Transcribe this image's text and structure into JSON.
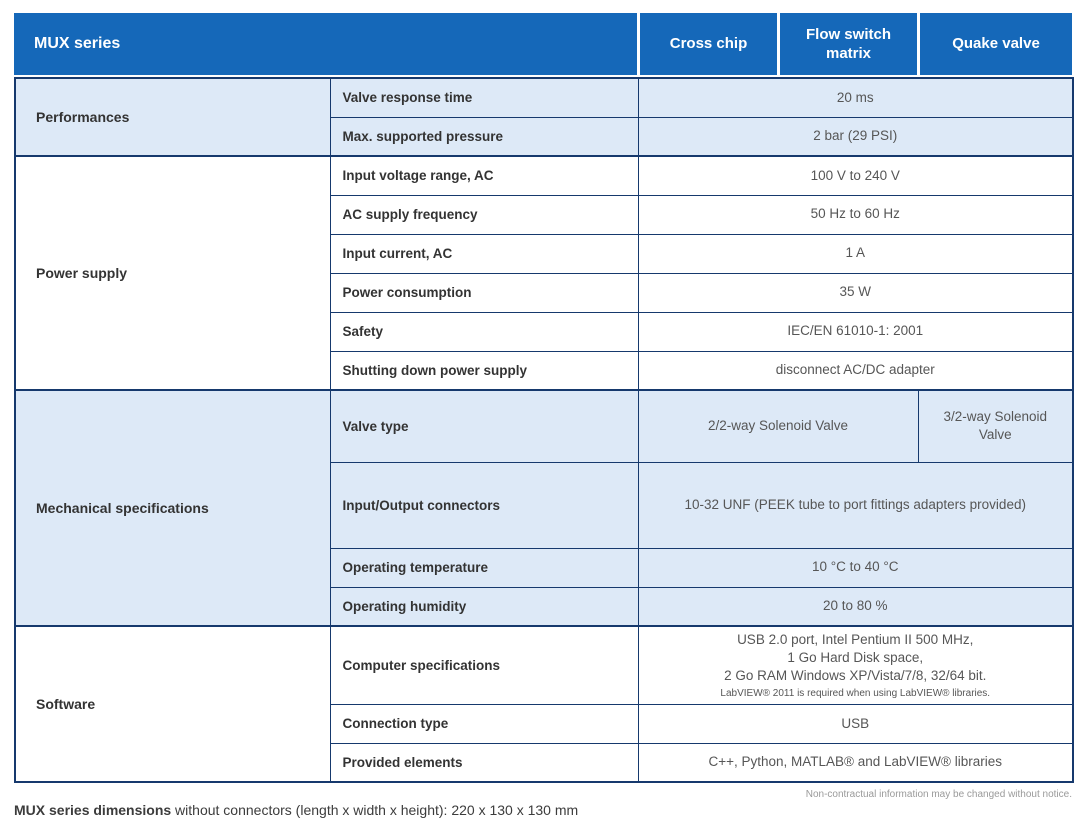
{
  "header": {
    "title": "MUX series",
    "columns": [
      "Cross chip",
      "Flow switch matrix",
      "Quake valve"
    ]
  },
  "sections": [
    {
      "name": "Performances",
      "rows": [
        {
          "label": "Valve response time",
          "value": "20 ms"
        },
        {
          "label": "Max. supported pressure",
          "value": "2 bar (29 PSI)"
        }
      ]
    },
    {
      "name": "Power supply",
      "rows": [
        {
          "label": "Input voltage range, AC",
          "value": "100 V to 240 V"
        },
        {
          "label": "AC supply frequency",
          "value": "50 Hz to 60 Hz"
        },
        {
          "label": "Input current, AC",
          "value": "1 A"
        },
        {
          "label": "Power consumption",
          "value": "35 W"
        },
        {
          "label": "Safety",
          "value": "IEC/EN 61010-1: 2001"
        },
        {
          "label": "Shutting down power supply",
          "value": "disconnect AC/DC adapter"
        }
      ]
    },
    {
      "name": "Mechanical specifications",
      "rows": [
        {
          "label": "Valve type",
          "values": [
            "2/2-way Solenoid Valve",
            "3/2-way Solenoid Valve"
          ]
        },
        {
          "label": "Input/Output connectors",
          "value": "10-32 UNF (PEEK tube to port fittings adapters provided)"
        },
        {
          "label": "Operating temperature",
          "value": "10 °C to 40 °C"
        },
        {
          "label": "Operating humidity",
          "value": "20 to 80 %"
        }
      ]
    },
    {
      "name": "Software",
      "rows": [
        {
          "label": "Computer specifications",
          "value_lines": [
            "USB 2.0 port, Intel Pentium II 500 MHz,",
            "1 Go Hard Disk space,",
            "2 Go RAM Windows XP/Vista/7/8, 32/64 bit."
          ],
          "note": "LabVIEW® 2011 is required when using LabVIEW® libraries."
        },
        {
          "label": "Connection type",
          "value": "USB"
        },
        {
          "label": "Provided elements",
          "value": "C++, Python, MATLAB® and LabVIEW® libraries"
        }
      ]
    }
  ],
  "footer": {
    "dimensions_label": "MUX series dimensions",
    "dimensions_text": " without connectors (length x width x height): 220 x 130 x 130 mm",
    "disclaimer": "Non-contractual information may be changed without notice."
  },
  "colors": {
    "header_bg": "#1568b9",
    "border": "#16396d",
    "shaded_row": "#dde9f7"
  }
}
